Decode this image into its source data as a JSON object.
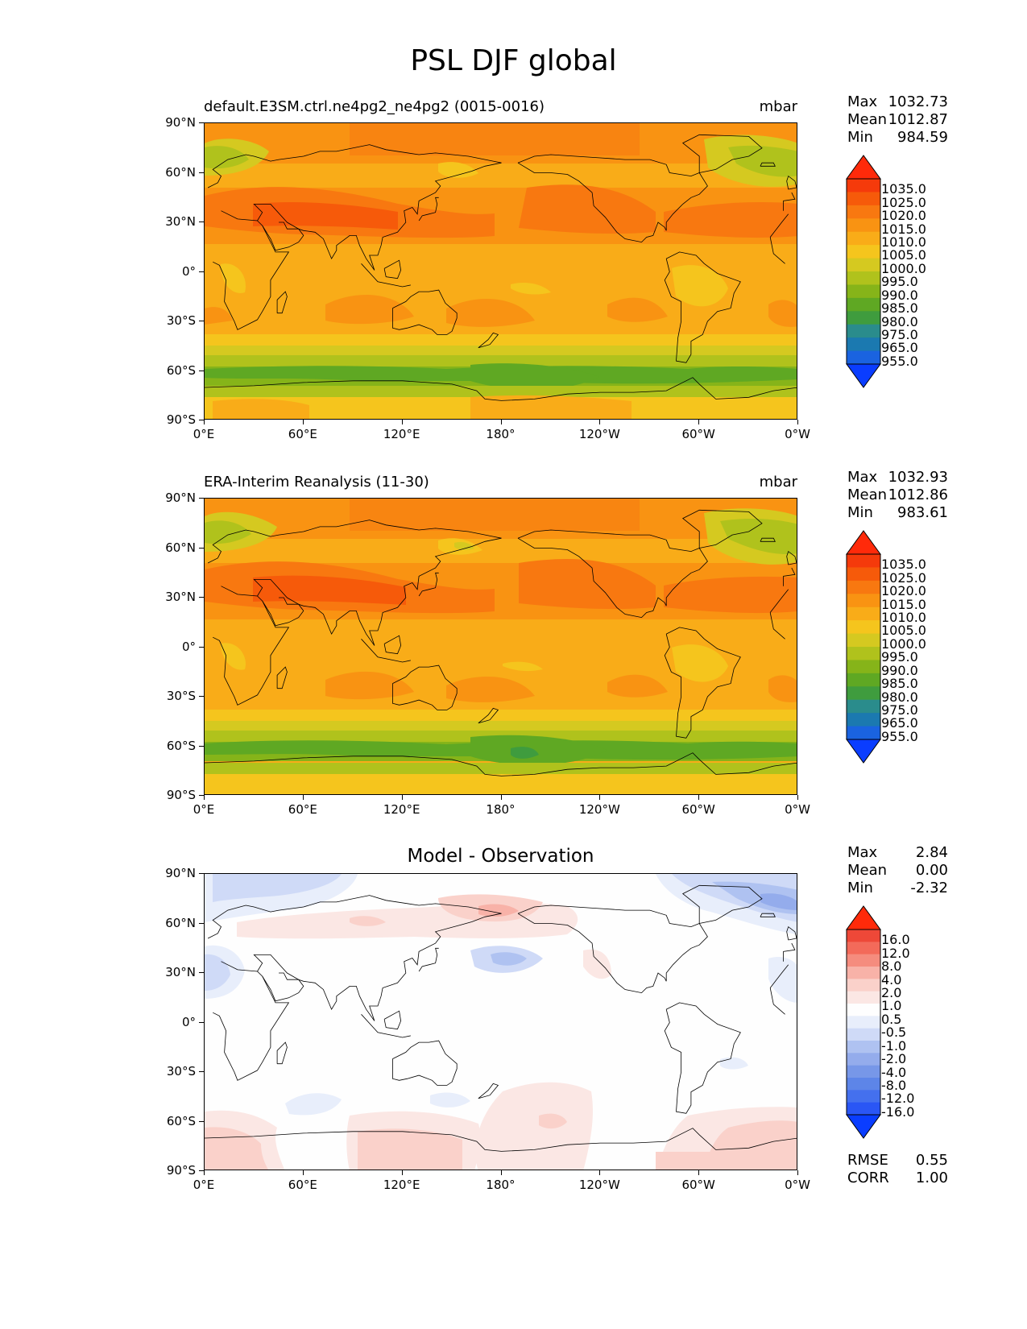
{
  "figure": {
    "title": "PSL DJF global"
  },
  "axes": {
    "lat_labels": [
      "90°N",
      "60°N",
      "30°N",
      "0°",
      "30°S",
      "60°S",
      "90°S"
    ],
    "lon_labels": [
      "0°E",
      "60°E",
      "120°E",
      "180°",
      "120°W",
      "60°W",
      "0°W"
    ]
  },
  "colors": {
    "psl_levels": [
      "#0a3dff",
      "#1a63e0",
      "#1b79b0",
      "#2a8c8c",
      "#3f9c3e",
      "#5fa823",
      "#86b419",
      "#b0c21c",
      "#d5c920",
      "#f5c51d",
      "#f9ac18",
      "#f99312",
      "#f87810",
      "#f65a0a",
      "#f53a0b",
      "#ff2a0a"
    ],
    "diff_levels": [
      "#0a3dff",
      "#2a56f5",
      "#4470ee",
      "#5d85e8",
      "#7797e8",
      "#94acec",
      "#afc2f1",
      "#cfdaf7",
      "#e8eefb",
      "#fefefe",
      "#fbe7e4",
      "#fad1ca",
      "#f8b2a8",
      "#f58c7e",
      "#f36a5a",
      "#ee4838",
      "#ff2a0a"
    ],
    "coastline": "#000000"
  },
  "panels": [
    {
      "title": "default.E3SM.ctrl.ne4pg2_ne4pg2 (0015-0016)",
      "units": "mbar",
      "stats": {
        "max_label": "Max",
        "max": "1032.73",
        "mean_label": "Mean",
        "mean": "1012.87",
        "min_label": "Min",
        "min": "984.59"
      },
      "colorbar_labels": [
        "1035.0",
        "1025.0",
        "1020.0",
        "1015.0",
        "1010.0",
        "1005.0",
        "1000.0",
        "995.0",
        "990.0",
        "985.0",
        "980.0",
        "975.0",
        "965.0",
        "955.0"
      ]
    },
    {
      "title": "ERA-Interim Reanalysis (11-30)",
      "units": "mbar",
      "stats": {
        "max_label": "Max",
        "max": "1032.93",
        "mean_label": "Mean",
        "mean": "1012.86",
        "min_label": "Min",
        "min": "983.61"
      },
      "colorbar_labels": [
        "1035.0",
        "1025.0",
        "1020.0",
        "1015.0",
        "1010.0",
        "1005.0",
        "1000.0",
        "995.0",
        "990.0",
        "985.0",
        "980.0",
        "975.0",
        "965.0",
        "955.0"
      ]
    },
    {
      "title": "Model - Observation",
      "units": "",
      "stats": {
        "max_label": "Max",
        "max": "2.84",
        "mean_label": "Mean",
        "mean": "0.00",
        "min_label": "Min",
        "min": "-2.32"
      },
      "colorbar_labels": [
        "16.0",
        "12.0",
        "8.0",
        "4.0",
        "2.0",
        "1.0",
        "0.5",
        "-0.5",
        "-1.0",
        "-2.0",
        "-4.0",
        "-8.0",
        "-12.0",
        "-16.0"
      ],
      "metrics": {
        "rmse_label": "RMSE",
        "rmse": "0.55",
        "corr_label": "CORR",
        "corr": "1.00"
      }
    }
  ]
}
